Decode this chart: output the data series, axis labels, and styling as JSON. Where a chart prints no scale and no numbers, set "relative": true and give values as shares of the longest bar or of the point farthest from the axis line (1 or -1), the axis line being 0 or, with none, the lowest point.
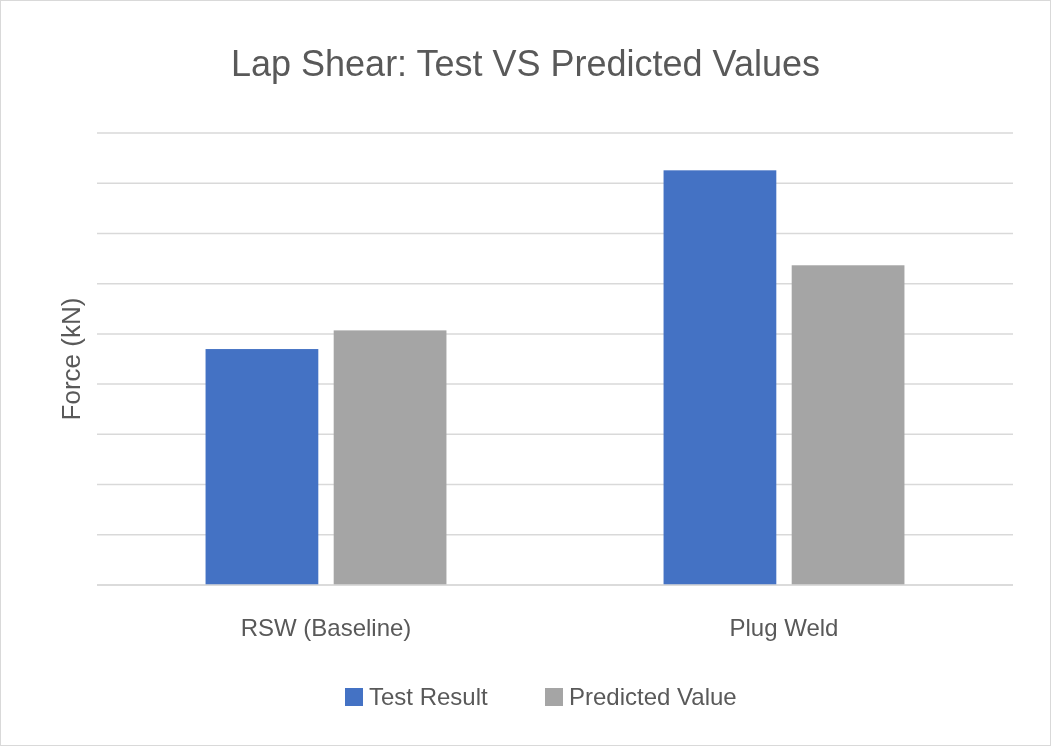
{
  "chart_data": {
    "type": "bar",
    "title": "Lap Shear: Test VS Predicted Values",
    "ylabel": "Force (kN)",
    "categories": [
      "RSW (Baseline)",
      "Plug Weld"
    ],
    "relative": true,
    "grid": true,
    "legend": "bottom",
    "series": [
      {
        "name": "Test Result",
        "color": "#4472c4",
        "values": [
          0.569,
          1
        ]
      },
      {
        "name": "Predicted Value",
        "color": "#a5a5a5",
        "values": [
          0.614,
          0.771
        ]
      }
    ]
  }
}
